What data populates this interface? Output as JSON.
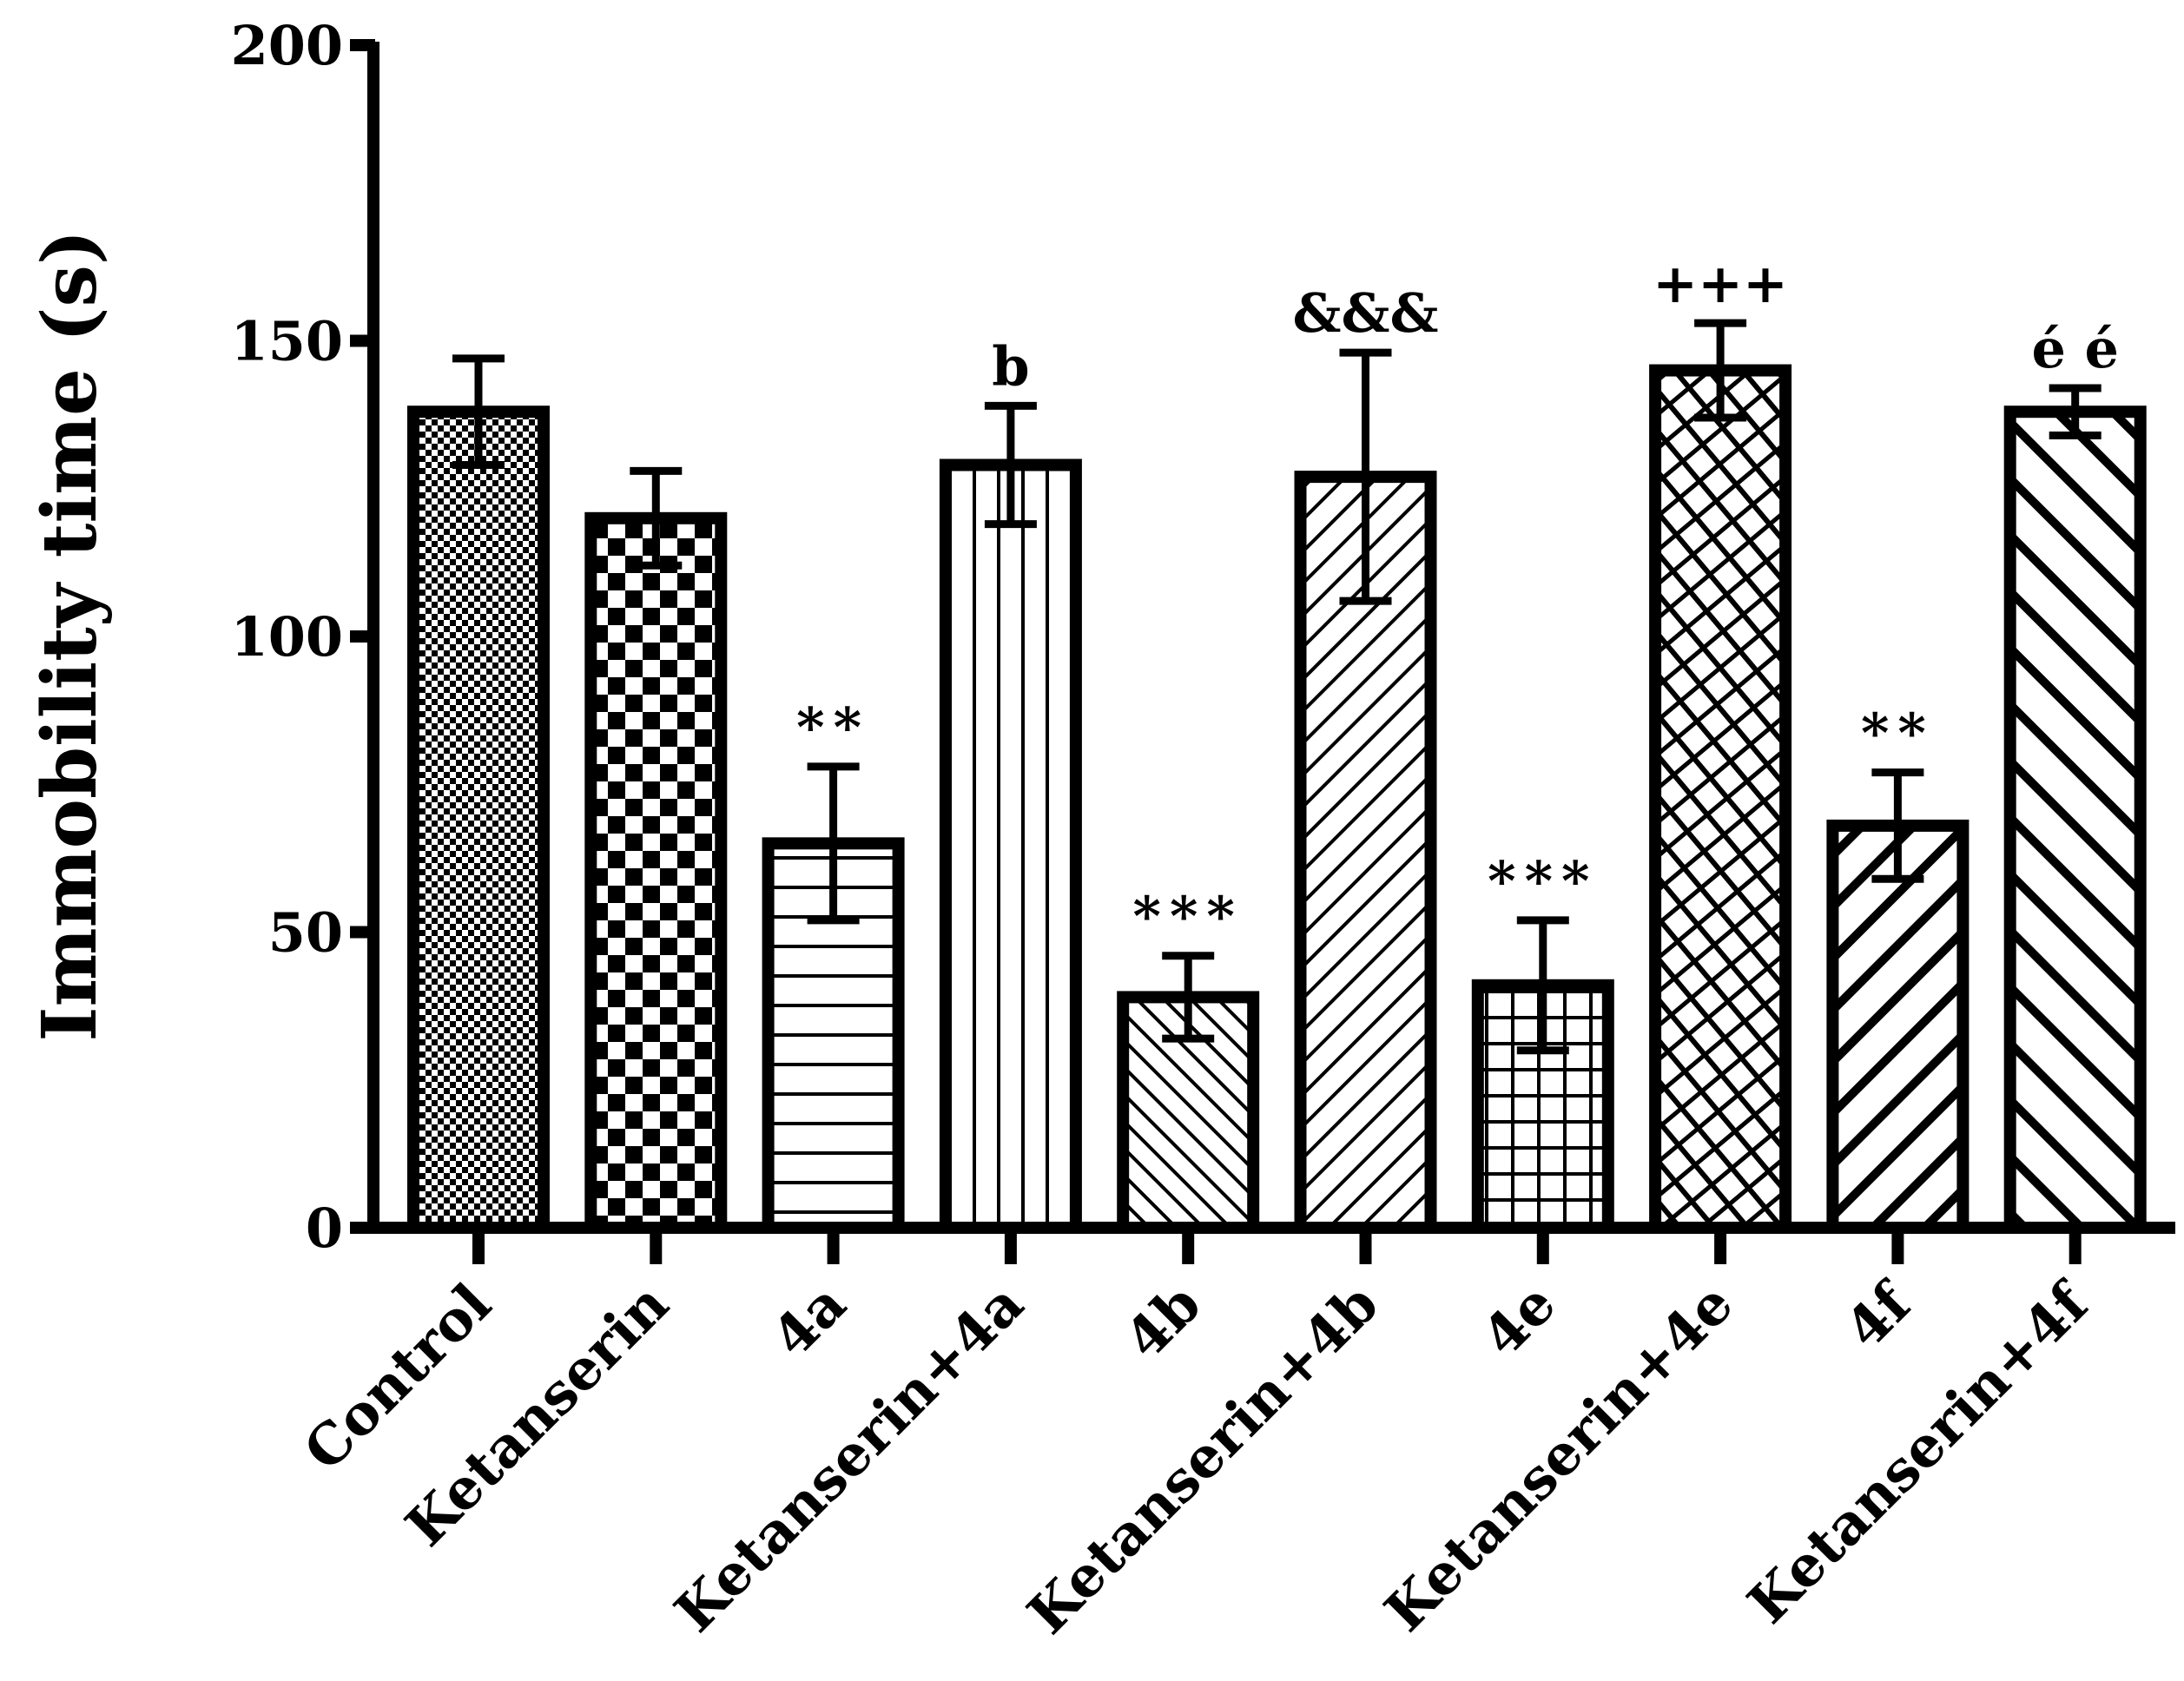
{
  "chart_data": {
    "type": "bar",
    "title": "",
    "xlabel": "",
    "ylabel": "Immobility time (s)",
    "ylim": [
      0,
      200
    ],
    "yticks": [
      0,
      50,
      100,
      150,
      200
    ],
    "grid": false,
    "categories": [
      "Control",
      "Ketanserin",
      "4a",
      "Ketanserin+4a",
      "4b",
      "Ketanserin+4b",
      "4e",
      "Ketanserin+4e",
      "4f",
      "Ketanserin+4f"
    ],
    "values": [
      138,
      120,
      65,
      129,
      39,
      127,
      41,
      145,
      68,
      138
    ],
    "errors": [
      9,
      8,
      13,
      10,
      7,
      21,
      11,
      8,
      9,
      4
    ],
    "annotations": [
      "",
      "",
      "**",
      "b",
      "***",
      "&&&",
      "***",
      "+++",
      "**",
      "é é"
    ],
    "patterns": [
      "fine-checker",
      "checker",
      "horizontal-lines",
      "vertical-lines",
      "diagonal-fine-up",
      "diagonal-down",
      "grid",
      "crosshatch-brick",
      "diagonal-bold-down",
      "diagonal-bold-up"
    ],
    "colors": {
      "stroke": "#000000",
      "fill": "#ffffff"
    }
  }
}
